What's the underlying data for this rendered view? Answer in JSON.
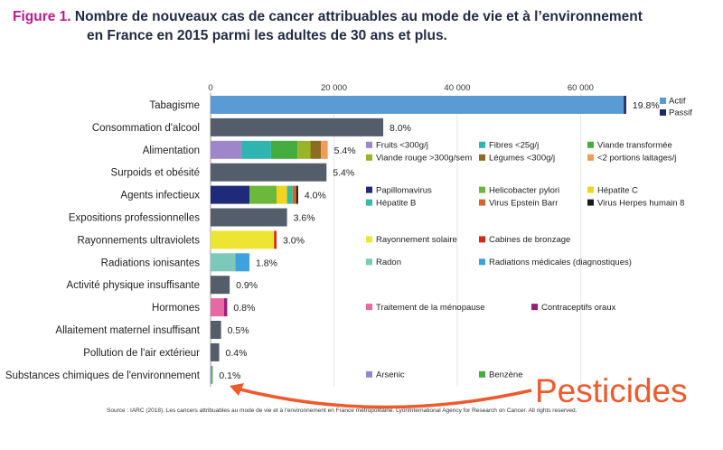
{
  "title": {
    "figure_label": "Figure 1.",
    "line1": "Nombre de nouveaux cas de cancer attribuables au mode de vie et à l’environnement",
    "line2": "en France en 2015 parmi les adultes de 30 ans et plus."
  },
  "source": "Source : IARC (2018). Les cancers attribuables au mode de vie et à l’environnement en France métropolitaine. LyonInternational Agency for Research on Cancer. All rights reserved.",
  "annotation": {
    "text": "Pesticides",
    "color": "#ee5a2c"
  },
  "chart_data": {
    "type": "bar",
    "orientation": "horizontal",
    "stacked": true,
    "xlim": [
      0,
      68000
    ],
    "x_ticks": [
      0,
      20000,
      40000,
      60000
    ],
    "x_tick_labels": [
      "0",
      "20 000",
      "40 000",
      "60 000"
    ],
    "rows": [
      {
        "label": "Tabagisme",
        "pct_label": "19.8%",
        "segments": [
          {
            "value": 67000,
            "color": "#5b9bd5"
          },
          {
            "value": 400,
            "color": "#1f2b5e"
          }
        ],
        "legend": [
          {
            "name": "Actif",
            "color": "#5b9bd5"
          },
          {
            "name": "Passif",
            "color": "#1f2b5e"
          }
        ]
      },
      {
        "label": "Consommation d'alcool",
        "pct_label": "8.0%",
        "segments": [
          {
            "value": 28000,
            "color": "#545d6b"
          }
        ],
        "legend": []
      },
      {
        "label": "Alimentation",
        "pct_label": "5.4%",
        "segments": [
          {
            "value": 5000,
            "color": "#9e86c8"
          },
          {
            "value": 4800,
            "color": "#2fb5b0"
          },
          {
            "value": 4300,
            "color": "#44ad3e"
          },
          {
            "value": 2100,
            "color": "#9ab42a"
          },
          {
            "value": 1700,
            "color": "#8c6d1f"
          },
          {
            "value": 1100,
            "color": "#f29a58"
          }
        ],
        "legend": [
          {
            "name": "Fruits <300g/j",
            "color": "#9e86c8"
          },
          {
            "name": "Fibres <25g/j",
            "color": "#2fb5b0"
          },
          {
            "name": "Viande transformée",
            "color": "#44ad3e"
          },
          {
            "name": "Viande rouge >300g/sem",
            "color": "#9ab42a"
          },
          {
            "name": "Légumes <300g/j",
            "color": "#8c6d1f"
          },
          {
            "name": "<2 portions laitages/j",
            "color": "#f29a58"
          }
        ]
      },
      {
        "label": "Surpoids et obésité",
        "pct_label": "5.4%",
        "segments": [
          {
            "value": 18800,
            "color": "#545d6b"
          }
        ],
        "legend": []
      },
      {
        "label": "Agents infectieux",
        "pct_label": "4.0%",
        "segments": [
          {
            "value": 6300,
            "color": "#1f2b7a"
          },
          {
            "value": 4400,
            "color": "#6cb83a"
          },
          {
            "value": 1700,
            "color": "#f5d21c"
          },
          {
            "value": 900,
            "color": "#36bba0"
          },
          {
            "value": 600,
            "color": "#d9622b"
          },
          {
            "value": 300,
            "color": "#1a1a1a"
          }
        ],
        "legend": [
          {
            "name": "Papillomavirus",
            "color": "#1f2b7a"
          },
          {
            "name": "Helicobacter pylori",
            "color": "#6cb83a"
          },
          {
            "name": "Hépatite C",
            "color": "#f5d21c"
          },
          {
            "name": "Hépatite B",
            "color": "#36bba0"
          },
          {
            "name": "Virus Epstein Barr",
            "color": "#d9622b"
          },
          {
            "name": "Virus Herpes humain 8",
            "color": "#1a1a1a"
          }
        ]
      },
      {
        "label": "Expositions professionnelles",
        "pct_label": "3.6%",
        "segments": [
          {
            "value": 12400,
            "color": "#545d6b"
          }
        ],
        "legend": []
      },
      {
        "label": "Rayonnements ultraviolets",
        "pct_label": "3.0%",
        "segments": [
          {
            "value": 10300,
            "color": "#ede532"
          },
          {
            "value": 400,
            "color": "#d9261c"
          }
        ],
        "legend": [
          {
            "name": "Rayonnement solaire",
            "color": "#ede532"
          },
          {
            "name": "Cabines de bronzage",
            "color": "#d9261c"
          }
        ]
      },
      {
        "label": "Radiations ionisantes",
        "pct_label": "1.8%",
        "segments": [
          {
            "value": 4000,
            "color": "#7cc9b9"
          },
          {
            "value": 2300,
            "color": "#3ea2dd"
          }
        ],
        "legend": [
          {
            "name": "Radon",
            "color": "#7cc9b9"
          },
          {
            "name": "Radiations médicales (diagnostiques)",
            "color": "#3ea2dd"
          }
        ]
      },
      {
        "label": "Activité physique insuffisante",
        "pct_label": "0.9%",
        "segments": [
          {
            "value": 3100,
            "color": "#545d6b"
          }
        ],
        "legend": []
      },
      {
        "label": "Hormones",
        "pct_label": "0.8%",
        "segments": [
          {
            "value": 2200,
            "color": "#e868a3"
          },
          {
            "value": 500,
            "color": "#9e1b7e"
          }
        ],
        "legend": [
          {
            "name": "Traitement de la ménopause",
            "color": "#e868a3"
          },
          {
            "name": "Contraceptifs oraux",
            "color": "#9e1b7e"
          }
        ]
      },
      {
        "label": "Allaitement maternel insuffisant",
        "pct_label": "0.5%",
        "segments": [
          {
            "value": 1700,
            "color": "#545d6b"
          }
        ],
        "legend": []
      },
      {
        "label": "Pollution de l'air extérieur",
        "pct_label": "0.4%",
        "segments": [
          {
            "value": 1400,
            "color": "#545d6b"
          }
        ],
        "legend": []
      },
      {
        "label": "Substances chimiques de l'environnement",
        "pct_label": "0.1%",
        "segments": [
          {
            "value": 200,
            "color": "#8a8cc6"
          },
          {
            "value": 150,
            "color": "#44ad3e"
          }
        ],
        "legend": [
          {
            "name": "Arsenic",
            "color": "#8a8cc6"
          },
          {
            "name": "Benzène",
            "color": "#44ad3e"
          }
        ]
      }
    ]
  }
}
